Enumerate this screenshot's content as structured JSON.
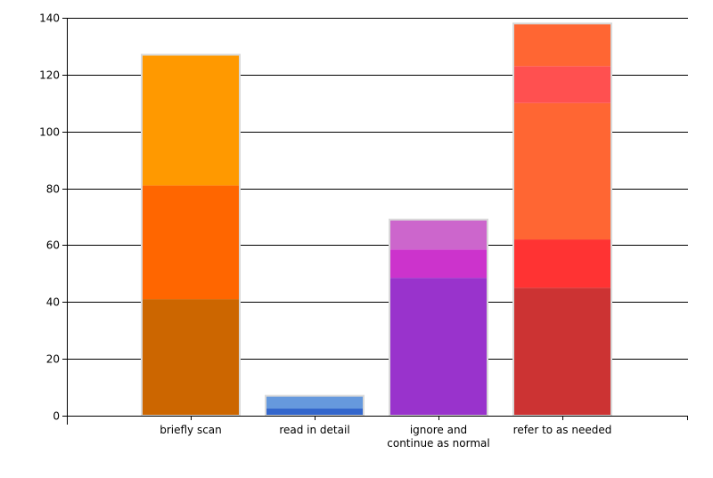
{
  "chart_data": {
    "type": "bar",
    "stacked": true,
    "title": "",
    "xlabel": "",
    "ylabel": "",
    "ylim": [
      0,
      140
    ],
    "yticks": [
      0,
      20,
      40,
      60,
      80,
      100,
      120,
      140
    ],
    "grid": true,
    "legend": "none",
    "categories": [
      {
        "label_lines": [
          "briefly scan"
        ],
        "total": 127,
        "segments": [
          {
            "value": 41,
            "color": "#CC6600"
          },
          {
            "value": 40,
            "color": "#FF6600"
          },
          {
            "value": 46,
            "color": "#FF9900"
          }
        ]
      },
      {
        "label_lines": [
          "read in detail"
        ],
        "total": 7,
        "segments": [
          {
            "value": 2.5,
            "color": "#3366CC"
          },
          {
            "value": 4.5,
            "color": "#6699DD"
          }
        ]
      },
      {
        "label_lines": [
          "ignore and",
          "continue as normal"
        ],
        "total": 69,
        "segments": [
          {
            "value": 48.5,
            "color": "#9933CC"
          },
          {
            "value": 10,
            "color": "#CC33CC"
          },
          {
            "value": 10.5,
            "color": "#CC66CC"
          }
        ]
      },
      {
        "label_lines": [
          "refer to as needed"
        ],
        "total": 138,
        "segments": [
          {
            "value": 45,
            "color": "#CC3333"
          },
          {
            "value": 17,
            "color": "#FF3333"
          },
          {
            "value": 48,
            "color": "#FF6633"
          },
          {
            "value": 13,
            "color": "#FF5050"
          },
          {
            "value": 15,
            "color": "#FF6633"
          }
        ]
      }
    ],
    "colors": {
      "gridline": "#000000",
      "bar_border": "#D9D9D9"
    }
  }
}
